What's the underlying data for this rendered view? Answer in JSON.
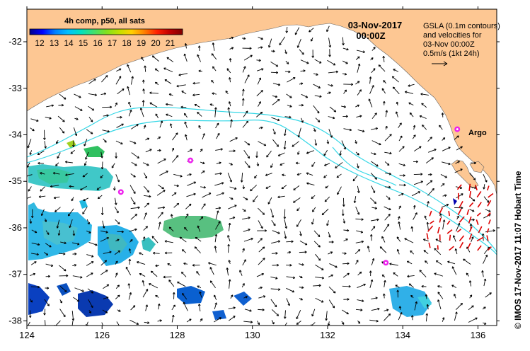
{
  "map": {
    "colorbar": {
      "title": "4h comp, p50, all sats",
      "ticks": [
        "12",
        "13",
        "14",
        "15",
        "16",
        "17",
        "18",
        "19",
        "20",
        "21"
      ],
      "colors": [
        "#00008b",
        "#0000ff",
        "#0080ff",
        "#00c0ff",
        "#00e0c0",
        "#40e070",
        "#80e020",
        "#c0e000",
        "#ffd000",
        "#ff8000",
        "#ff2000",
        "#c00000",
        "#800000"
      ]
    },
    "date": "03-Nov-2017",
    "time": "00:00Z",
    "legend_lines": [
      "GSLA (0.1m contours)",
      "and velocities for",
      "03-Nov 00:00Z",
      "0.5m/s (1kt 24h)"
    ],
    "argo_label": "Argo",
    "credit": "© IMOS 17-Nov-2017 11:07 Hobart Time",
    "x_axis": {
      "ticks": [
        "124",
        "126",
        "128",
        "130",
        "132",
        "134",
        "136"
      ],
      "values": [
        124,
        126,
        128,
        130,
        132,
        134,
        136
      ]
    },
    "y_axis": {
      "ticks": [
        "-32",
        "-33",
        "-34",
        "-35",
        "-36",
        "-37",
        "-38"
      ],
      "values": [
        -32,
        -33,
        -34,
        -35,
        -36,
        -37,
        -38
      ]
    },
    "extent": {
      "lon": [
        124,
        136.5
      ],
      "lat": [
        -38.1,
        -31.3
      ]
    },
    "argo_floats": [
      {
        "lon": 135.45,
        "lat": -33.88
      },
      {
        "lon": 128.35,
        "lat": -34.55
      },
      {
        "lon": 126.5,
        "lat": -35.23
      },
      {
        "lon": 133.55,
        "lat": -36.75
      }
    ],
    "colors": {
      "land": "#fdc793",
      "contour": "#35d7e6",
      "argo": "#ee22ee",
      "arrow": "#000000",
      "front_arrow": "#dd0000"
    }
  }
}
